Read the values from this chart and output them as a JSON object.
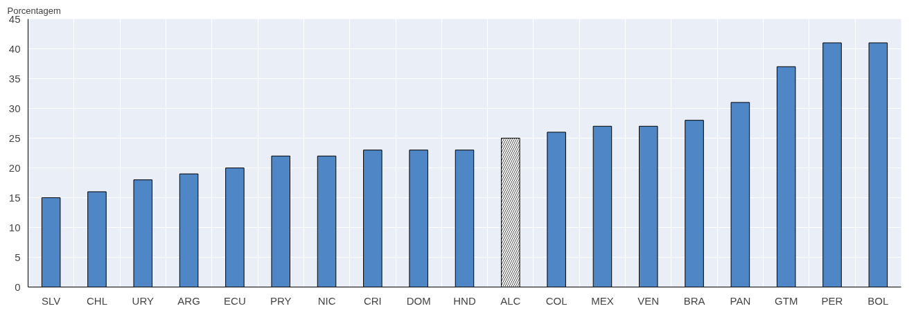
{
  "chart_data": {
    "type": "bar",
    "ylabel": "Porcentagem",
    "categories": [
      "SLV",
      "CHL",
      "URY",
      "ARG",
      "ECU",
      "PRY",
      "NIC",
      "CRI",
      "DOM",
      "HND",
      "ALC",
      "COL",
      "MEX",
      "VEN",
      "BRA",
      "PAN",
      "GTM",
      "PER",
      "BOL"
    ],
    "values": [
      15,
      16,
      18,
      19,
      20,
      22,
      22,
      23,
      23,
      23,
      25,
      26,
      27,
      27,
      28,
      31,
      37,
      41,
      41
    ],
    "colors": [
      "#4e86c6",
      "#4e86c6",
      "#4e86c6",
      "#4e86c6",
      "#4e86c6",
      "#4e86c6",
      "#4e86c6",
      "#4e86c6",
      "#4e86c6",
      "#4e86c6",
      "#ffffff",
      "#4e86c6",
      "#4e86c6",
      "#4e86c6",
      "#4e86c6",
      "#4e86c6",
      "#4e86c6",
      "#4e86c6",
      "#4e86c6"
    ],
    "ylim": [
      0,
      45
    ],
    "yticks": [
      0,
      5,
      10,
      15,
      20,
      25,
      30,
      35,
      40,
      45
    ],
    "grid": true
  }
}
